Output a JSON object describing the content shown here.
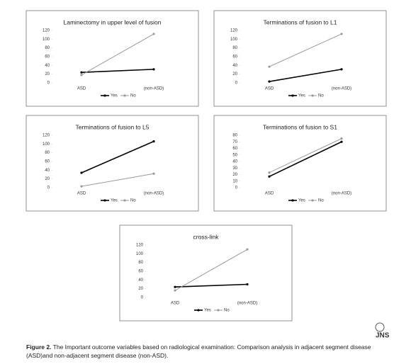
{
  "chart_data": [
    {
      "type": "line",
      "title": "Laminectomy in upper level of fusion",
      "categories": [
        "ASD",
        "(non-ASD)"
      ],
      "series": [
        {
          "name": "Yes",
          "color": "#000000",
          "values": [
            24,
            31
          ]
        },
        {
          "name": "No",
          "color": "#999999",
          "values": [
            18,
            112
          ]
        }
      ],
      "ylim": [
        0,
        120
      ],
      "yticks": [
        0,
        20,
        40,
        60,
        80,
        100,
        120
      ]
    },
    {
      "type": "line",
      "title": "Terminations of fusion to L1",
      "categories": [
        "ASD",
        "(non-ASD)"
      ],
      "series": [
        {
          "name": "Yes",
          "color": "#000000",
          "values": [
            3,
            31
          ]
        },
        {
          "name": "No",
          "color": "#999999",
          "values": [
            37,
            112
          ]
        }
      ],
      "ylim": [
        0,
        120
      ],
      "yticks": [
        0,
        20,
        40,
        60,
        80,
        100,
        120
      ]
    },
    {
      "type": "line",
      "title": "Terminations of fusion to L5",
      "categories": [
        "ASD",
        "(non-ASD)"
      ],
      "series": [
        {
          "name": "Yes",
          "color": "#000000",
          "values": [
            34,
            106
          ]
        },
        {
          "name": "No",
          "color": "#999999",
          "values": [
            3,
            32
          ]
        }
      ],
      "ylim": [
        0,
        120
      ],
      "yticks": [
        0,
        20,
        40,
        60,
        80,
        100,
        120
      ]
    },
    {
      "type": "line",
      "title": "Terminations of fusion to S1",
      "categories": [
        "ASD",
        "(non-ASD)"
      ],
      "series": [
        {
          "name": "Yes",
          "color": "#000000",
          "values": [
            17,
            70
          ]
        },
        {
          "name": "No",
          "color": "#999999",
          "values": [
            23,
            75
          ]
        }
      ],
      "ylim": [
        0,
        80
      ],
      "yticks": [
        0,
        10,
        20,
        30,
        40,
        50,
        60,
        70,
        80
      ]
    },
    {
      "type": "line",
      "title": "cross-link",
      "categories": [
        "ASD",
        "(non-ASD)"
      ],
      "series": [
        {
          "name": "Yes",
          "color": "#000000",
          "values": [
            24,
            30
          ]
        },
        {
          "name": "No",
          "color": "#999999",
          "values": [
            16,
            110
          ]
        }
      ],
      "ylim": [
        0,
        120
      ],
      "yticks": [
        0,
        20,
        40,
        60,
        80,
        100,
        120
      ]
    }
  ],
  "caption": {
    "label": "Figure 2.",
    "text": "The Important outcome variables based on radiological examination: Comparison analysis in adjacent segment disease (ASD)and non-adjacent segment disease (non-ASD)."
  },
  "logo": "JNS"
}
